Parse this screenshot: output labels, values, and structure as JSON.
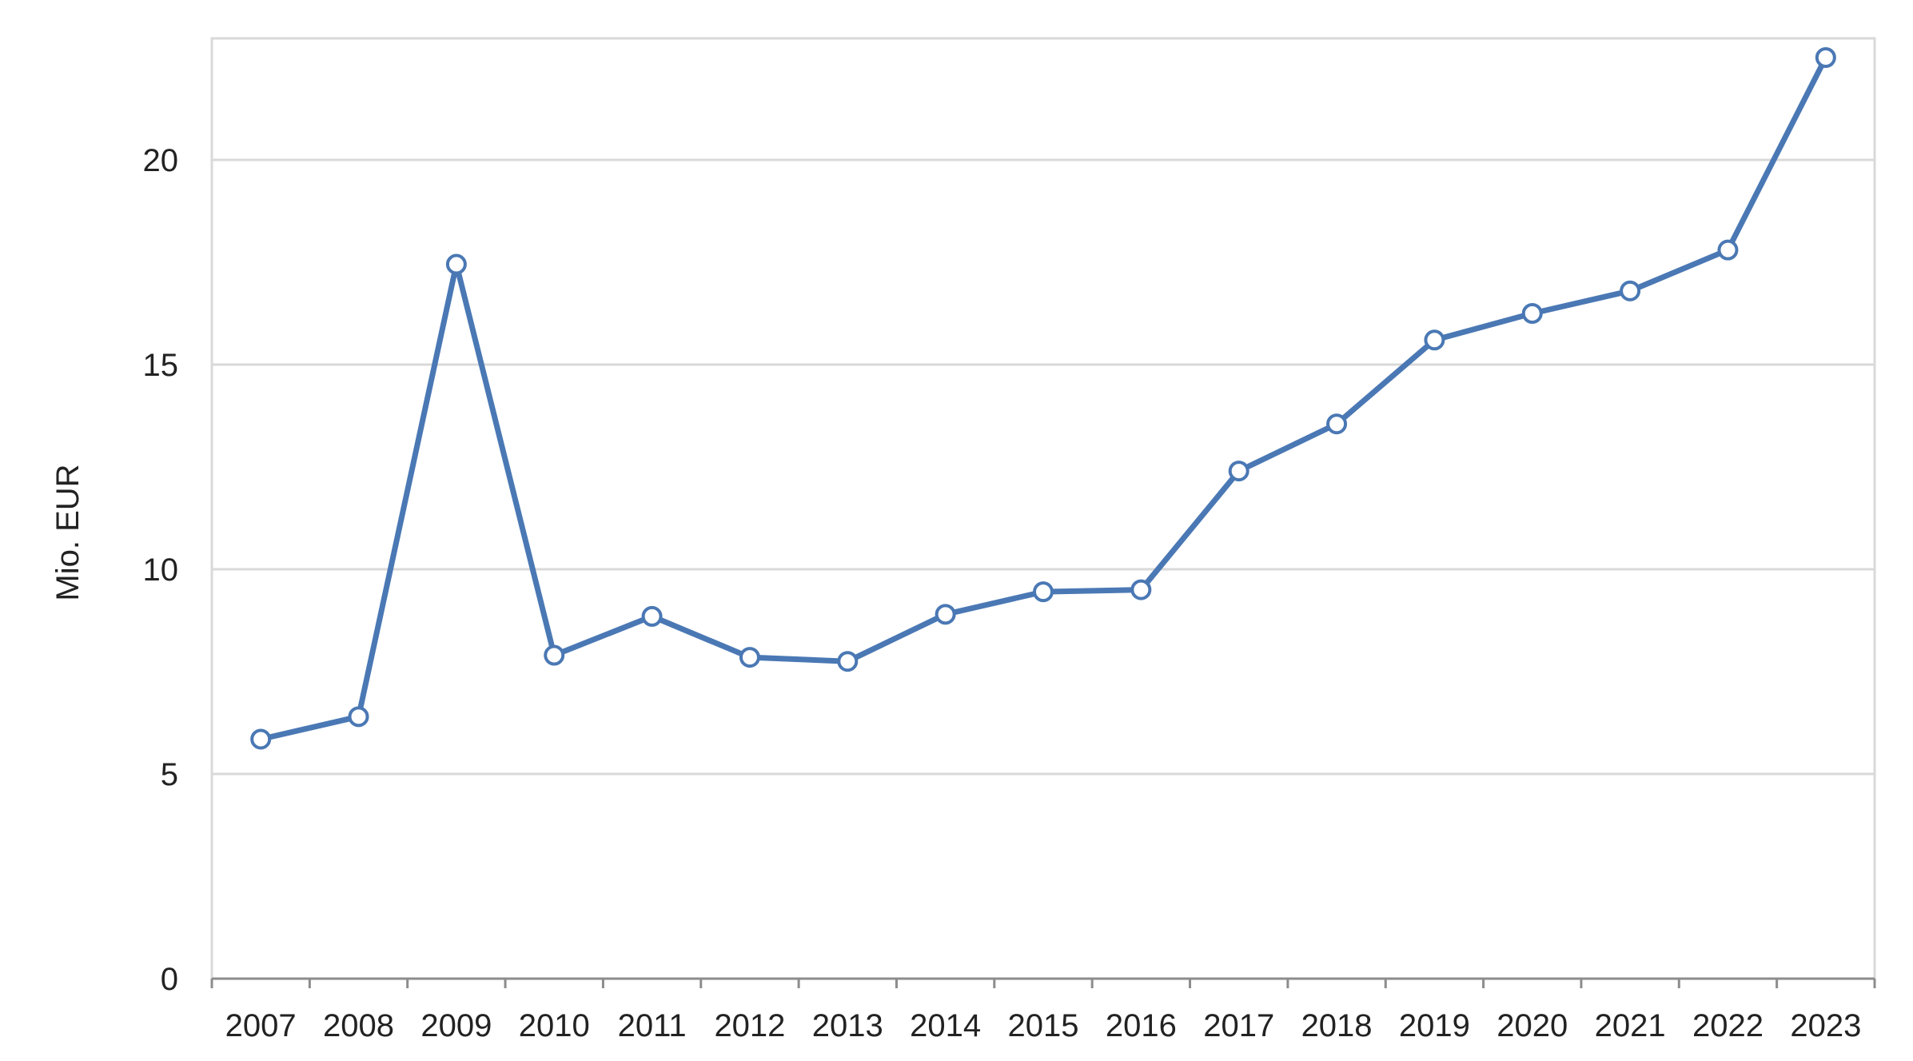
{
  "chart_data": {
    "type": "line",
    "title": "",
    "xlabel": "",
    "ylabel": "Mio. EUR",
    "ylim": [
      0,
      22.5
    ],
    "yticks": [
      0,
      5,
      10,
      15,
      20
    ],
    "grid": true,
    "legend": "none",
    "categories": [
      "2007",
      "2008",
      "2009",
      "2010",
      "2011",
      "2012",
      "2013",
      "2014",
      "2015",
      "2016",
      "2017",
      "2018",
      "2019",
      "2020",
      "2021",
      "2022",
      "2023"
    ],
    "series": [
      {
        "values": [
          5.85,
          6.4,
          17.45,
          7.9,
          8.85,
          7.85,
          7.75,
          8.9,
          9.45,
          9.5,
          12.4,
          13.55,
          15.6,
          16.25,
          16.8,
          17.8,
          22.5
        ]
      }
    ],
    "colors": {
      "line": "#4a78b4",
      "marker_fill": "#ffffff",
      "grid": "#d9d9d9",
      "axis": "#8c8c8c",
      "frame": "#d9d9d9"
    }
  }
}
